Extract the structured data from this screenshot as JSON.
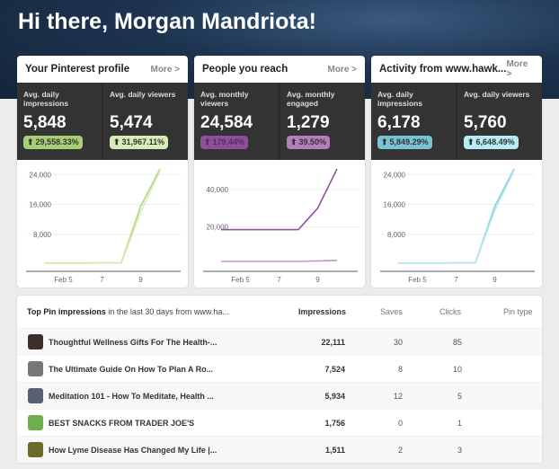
{
  "greeting": "Hi there, Morgan Mandriota!",
  "cards": [
    {
      "title": "Your Pinterest profile",
      "more": "More >",
      "color": "#b5d57e",
      "color2": "#d7ebb4",
      "stats": [
        {
          "label": "Avg. daily impressions",
          "value": "5,848",
          "change": "29,558.33%",
          "badge_color": "#a9cf75"
        },
        {
          "label": "Avg. daily viewers",
          "value": "5,474",
          "change": "31,967.11%",
          "badge_color": "#d8ecb6"
        }
      ]
    },
    {
      "title": "People you reach",
      "more": "More >",
      "color": "#8e4f9a",
      "color2": "#c692cf",
      "stats": [
        {
          "label": "Avg. monthly viewers",
          "value": "24,584",
          "change": "179.44%",
          "badge_color": "#8e4f9a"
        },
        {
          "label": "Avg. monthly engaged",
          "value": "1,279",
          "change": "39.50%",
          "badge_color": "#b67dbd"
        }
      ]
    },
    {
      "title": "Activity from www.hawk...",
      "more": "More >",
      "color": "#86d0e2",
      "color2": "#b8e6f0",
      "stats": [
        {
          "label": "Avg. daily impressions",
          "value": "6,178",
          "change": "5,849.29%",
          "badge_color": "#79c4d4"
        },
        {
          "label": "Avg. daily viewers",
          "value": "5,760",
          "change": "6,648.49%",
          "badge_color": "#b5ecf6"
        }
      ]
    }
  ],
  "chart_data": [
    {
      "type": "line",
      "x": [
        "Feb 4",
        "Feb 5",
        "Feb 6",
        "Feb 7",
        "Feb 8",
        "Feb 9",
        "Feb 10"
      ],
      "xticks": [
        "Feb 5",
        "7",
        "9"
      ],
      "yticks": [
        "8,000",
        "16,000",
        "24,000"
      ],
      "ylim": [
        0,
        26000
      ],
      "series": [
        {
          "values": [
            300,
            300,
            300,
            350,
            350,
            15500,
            25500
          ]
        },
        {
          "values": [
            250,
            250,
            250,
            300,
            300,
            14000,
            25000
          ]
        }
      ]
    },
    {
      "type": "line",
      "x": [
        "Feb 4",
        "Feb 5",
        "Feb 6",
        "Feb 7",
        "Feb 8",
        "Feb 9",
        "Feb 10"
      ],
      "xticks": [
        "Feb 5",
        "7",
        "9"
      ],
      "yticks": [
        "20,000",
        "40,000"
      ],
      "ylim": [
        0,
        52000
      ],
      "series": [
        {
          "values": [
            18500,
            18500,
            18500,
            18500,
            18500,
            30000,
            51000
          ]
        },
        {
          "values": [
            1500,
            1500,
            1500,
            1500,
            1500,
            1700,
            2000
          ]
        }
      ]
    },
    {
      "type": "line",
      "x": [
        "Feb 4",
        "Feb 5",
        "Feb 6",
        "Feb 7",
        "Feb 8",
        "Feb 9",
        "Feb 10"
      ],
      "xticks": [
        "Feb 5",
        "7",
        "9"
      ],
      "yticks": [
        "8,000",
        "16,000",
        "24,000"
      ],
      "ylim": [
        0,
        26000
      ],
      "series": [
        {
          "values": [
            300,
            300,
            300,
            350,
            350,
            15500,
            25500
          ]
        },
        {
          "values": [
            250,
            250,
            250,
            300,
            300,
            14500,
            25000
          ]
        }
      ]
    }
  ],
  "table": {
    "title_bold": "Top Pin impressions",
    "title_rest": " in the last 30 days from www.ha...",
    "columns": [
      "Impressions",
      "Saves",
      "Clicks",
      "Pin type"
    ],
    "rows": [
      {
        "name": "Thoughtful Wellness Gifts For The Health-...",
        "impressions": "22,111",
        "saves": "30",
        "clicks": "85",
        "thumb": "#3a2f2a"
      },
      {
        "name": "The Ultimate Guide On How To Plan A Ro...",
        "impressions": "7,524",
        "saves": "8",
        "clicks": "10",
        "thumb": "#777"
      },
      {
        "name": "Meditation 101 - How To Meditate, Health ...",
        "impressions": "5,934",
        "saves": "12",
        "clicks": "5",
        "thumb": "#5a6070"
      },
      {
        "name": "BEST SNACKS FROM TRADER JOE'S",
        "impressions": "1,756",
        "saves": "0",
        "clicks": "1",
        "thumb": "#6fae4a"
      },
      {
        "name": "How Lyme Disease Has Changed My Life |...",
        "impressions": "1,511",
        "saves": "2",
        "clicks": "3",
        "thumb": "#6a6a2a"
      }
    ]
  }
}
